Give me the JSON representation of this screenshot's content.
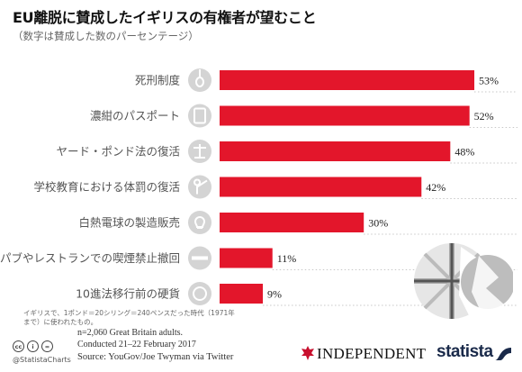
{
  "header": {
    "title": "EU離脱に賛成したイギリスの有権者が望むこと",
    "subtitle": "（数字は賛成した数のパーセンテージ）"
  },
  "chart_data": {
    "type": "bar",
    "orientation": "horizontal",
    "categories": [
      "死刑制度",
      "濃紺のパスポート",
      "ヤード・ポンド法の復活",
      "学校教育における体罰の復活",
      "白熱電球の製造販売",
      "パブやレストランでの喫煙禁止撤回",
      "10進法移行前の硬貨"
    ],
    "values": [
      53,
      52,
      48,
      42,
      30,
      11,
      9
    ],
    "value_labels": [
      "53%",
      "52%",
      "48%",
      "42%",
      "30%",
      "11%",
      "9%"
    ],
    "icons": [
      "noose-icon",
      "passport-icon",
      "scale-icon",
      "teacher-cane-icon",
      "lightbulb-icon",
      "cigarette-icon",
      "coin-icon"
    ],
    "bar_color": "#e3162b",
    "title": "EU離脱に賛成したイギリスの有権者が望むこと",
    "xlabel": "",
    "ylabel": ""
  },
  "footnote": "イギリスで、1ポンド＝20シリング＝240ペンスだった時代（1971年まで）に使われたもの。",
  "notes": {
    "line1": "n=2,060 Great Britain adults.",
    "line2": "Conducted 21–22 February 2017"
  },
  "source": "Source: YouGov/Joe Twyman via Twitter",
  "handle": "@StatistaCharts",
  "logos": {
    "independent": "INDEPENDENT",
    "statista": "statista"
  },
  "colors": {
    "bar": "#e3162b",
    "icon": "#d4d4d4",
    "dotted_line": "#c8c8c8"
  }
}
